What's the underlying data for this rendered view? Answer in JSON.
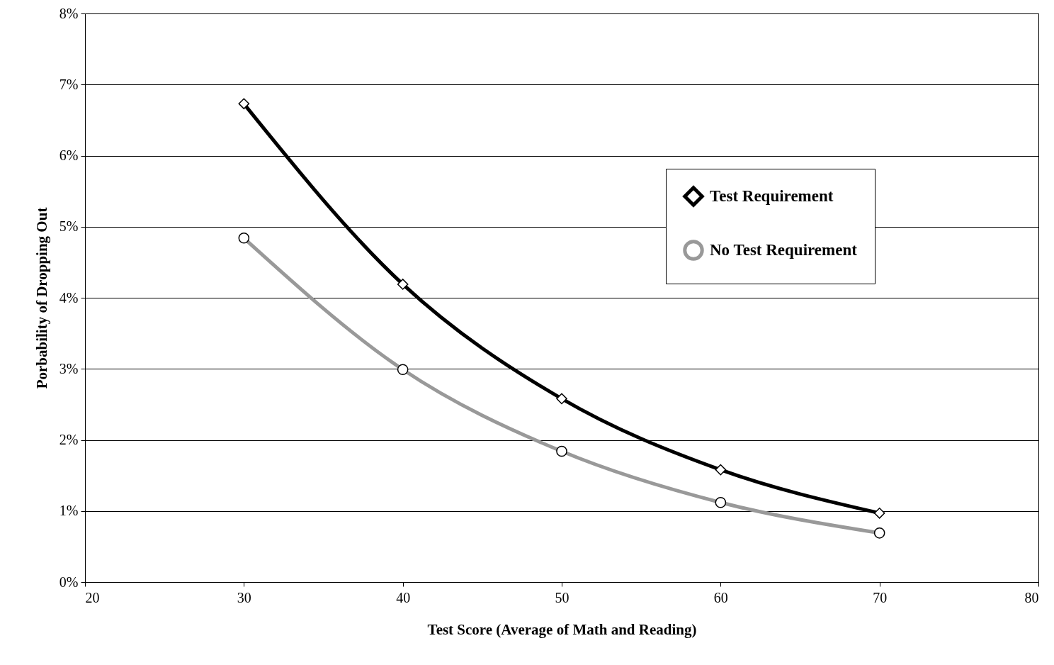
{
  "chart_data": {
    "type": "line",
    "xlabel": "Test Score (Average of Math and Reading)",
    "ylabel": "Porbability of Dropping Out",
    "x": [
      30,
      40,
      50,
      60,
      70
    ],
    "series": [
      {
        "name": "Test Requirement",
        "color": "#000000",
        "marker": "diamond",
        "values": [
          6.73,
          4.19,
          2.58,
          1.58,
          0.97
        ]
      },
      {
        "name": "No Test Requirement",
        "color": "#999999",
        "marker": "circle",
        "values": [
          4.84,
          2.99,
          1.84,
          1.12,
          0.69
        ]
      }
    ],
    "xlim": [
      20,
      80
    ],
    "xticks": [
      20,
      30,
      40,
      50,
      60,
      70,
      80
    ],
    "ylim": [
      0,
      8
    ],
    "yticks": [
      {
        "value": 0,
        "label": "0%"
      },
      {
        "value": 1,
        "label": "1%"
      },
      {
        "value": 2,
        "label": "2%"
      },
      {
        "value": 3,
        "label": "3%"
      },
      {
        "value": 4,
        "label": "4%"
      },
      {
        "value": 5,
        "label": "5%"
      },
      {
        "value": 6,
        "label": "6%"
      },
      {
        "value": 7,
        "label": "7%"
      },
      {
        "value": 8,
        "label": "8%"
      }
    ],
    "grid": "y",
    "legend": "top right"
  }
}
